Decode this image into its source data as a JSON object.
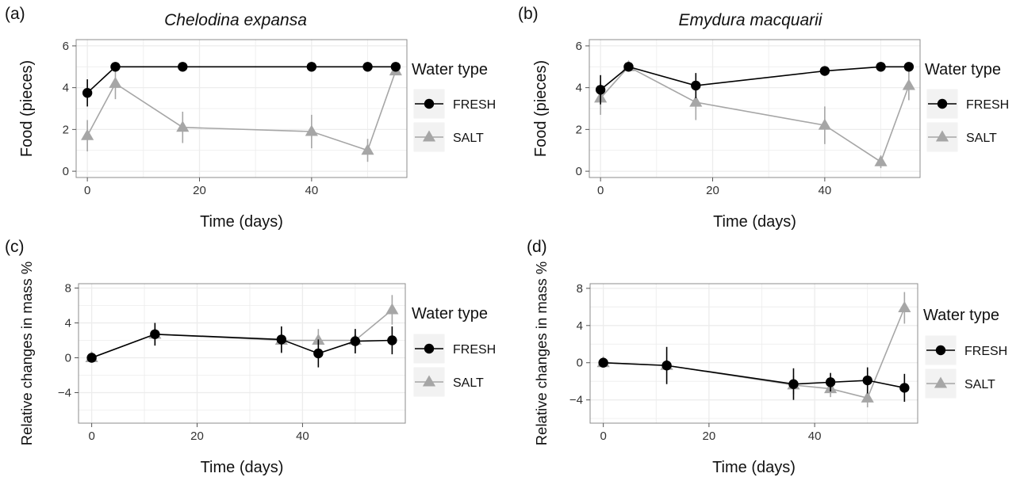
{
  "figure": {
    "panels": [
      {
        "letter": "(a)",
        "title": "Chelodina expansa"
      },
      {
        "letter": "(b)",
        "title": "Emydura macquarii"
      },
      {
        "letter": "(c)",
        "title": ""
      },
      {
        "letter": "(d)",
        "title": ""
      }
    ]
  },
  "colors": {
    "fresh": "#000000",
    "salt": "#a6a6a6",
    "grid": "#ececec",
    "panel_border": "#8c8c8c"
  },
  "chart_data": [
    {
      "type": "line",
      "panel": "(a)",
      "title": "Chelodina expansa",
      "xlabel": "Time (days)",
      "ylabel": "Food (pieces)",
      "xlim": [
        -2,
        57
      ],
      "ylim": [
        -0.3,
        6.3
      ],
      "xticks": [
        0,
        20,
        40
      ],
      "yticks": [
        0,
        2,
        4,
        6
      ],
      "grid": true,
      "legend": {
        "title": "Water type",
        "position": "right",
        "entries": [
          "FRESH",
          "SALT"
        ]
      },
      "series": [
        {
          "name": "FRESH",
          "marker": "circle",
          "x": [
            0,
            5,
            17,
            40,
            50,
            55
          ],
          "y": [
            3.75,
            5.0,
            5.0,
            5.0,
            5.0,
            5.0
          ],
          "err": [
            0.65,
            0,
            0,
            0,
            0,
            0
          ]
        },
        {
          "name": "SALT",
          "marker": "triangle",
          "x": [
            0,
            5,
            17,
            40,
            50,
            55
          ],
          "y": [
            1.7,
            4.2,
            2.1,
            1.9,
            1.0,
            4.8
          ],
          "err": [
            0.75,
            0.75,
            0.75,
            0.8,
            0.55,
            0
          ]
        }
      ]
    },
    {
      "type": "line",
      "panel": "(b)",
      "title": "Emydura macquarii",
      "xlabel": "Time (days)",
      "ylabel": "Food (pieces)",
      "xlim": [
        -2,
        57
      ],
      "ylim": [
        -0.3,
        6.3
      ],
      "xticks": [
        0,
        20,
        40
      ],
      "yticks": [
        0,
        2,
        4,
        6
      ],
      "grid": true,
      "legend": {
        "title": "Water type",
        "position": "right",
        "entries": [
          "FRESH",
          "SALT"
        ]
      },
      "series": [
        {
          "name": "FRESH",
          "marker": "circle",
          "x": [
            0,
            5,
            17,
            40,
            50,
            55
          ],
          "y": [
            3.9,
            5.0,
            4.1,
            4.8,
            5.0,
            5.0
          ],
          "err": [
            0.7,
            0,
            0.6,
            0,
            0,
            0
          ]
        },
        {
          "name": "SALT",
          "marker": "triangle",
          "x": [
            0,
            5,
            17,
            40,
            50,
            55
          ],
          "y": [
            3.5,
            5.0,
            3.3,
            2.2,
            0.45,
            4.1
          ],
          "err": [
            0.8,
            0,
            0.85,
            0.9,
            0.3,
            0.7
          ]
        }
      ]
    },
    {
      "type": "line",
      "panel": "(c)",
      "title": "",
      "xlabel": "Time (days)",
      "ylabel": "Relative changes in mass %",
      "xlim": [
        -2.5,
        59.5
      ],
      "ylim": [
        -7.5,
        8.5
      ],
      "xticks": [
        0,
        20,
        40
      ],
      "yticks": [
        -4,
        0,
        4,
        8
      ],
      "grid": true,
      "legend": {
        "title": "Water type",
        "position": "right",
        "entries": [
          "FRESH",
          "SALT"
        ]
      },
      "series": [
        {
          "name": "FRESH",
          "marker": "circle",
          "x": [
            0,
            12,
            36,
            43,
            50,
            57
          ],
          "y": [
            0,
            2.7,
            2.1,
            0.5,
            1.9,
            2.0
          ],
          "err": [
            0,
            1.3,
            1.5,
            1.6,
            1.4,
            1.6
          ]
        },
        {
          "name": "SALT",
          "marker": "triangle",
          "x": [
            0,
            12,
            36,
            43,
            50,
            57
          ],
          "y": [
            0,
            2.7,
            2.0,
            2.0,
            2.0,
            5.5
          ],
          "err": [
            0,
            1.3,
            1.5,
            1.3,
            1.3,
            1.7
          ]
        }
      ]
    },
    {
      "type": "line",
      "panel": "(d)",
      "title": "",
      "xlabel": "Time (days)",
      "ylabel": "Relative changes in mass %",
      "xlim": [
        -2.5,
        59.5
      ],
      "ylim": [
        -6.5,
        8.5
      ],
      "xticks": [
        0,
        20,
        40
      ],
      "yticks": [
        -4,
        0,
        4,
        8
      ],
      "grid": true,
      "legend": {
        "title": "Water type",
        "position": "right",
        "entries": [
          "FRESH",
          "SALT"
        ]
      },
      "series": [
        {
          "name": "FRESH",
          "marker": "circle",
          "x": [
            0,
            12,
            36,
            43,
            50,
            57
          ],
          "y": [
            0,
            -0.3,
            -2.3,
            -2.1,
            -1.9,
            -2.7
          ],
          "err": [
            0,
            2.0,
            1.7,
            1.0,
            1.4,
            1.5
          ]
        },
        {
          "name": "SALT",
          "marker": "triangle",
          "x": [
            0,
            12,
            36,
            43,
            50,
            57
          ],
          "y": [
            0,
            -0.3,
            -2.4,
            -2.8,
            -3.8,
            5.9
          ],
          "err": [
            0,
            0,
            1.0,
            0.9,
            1.0,
            1.7
          ]
        }
      ]
    }
  ]
}
